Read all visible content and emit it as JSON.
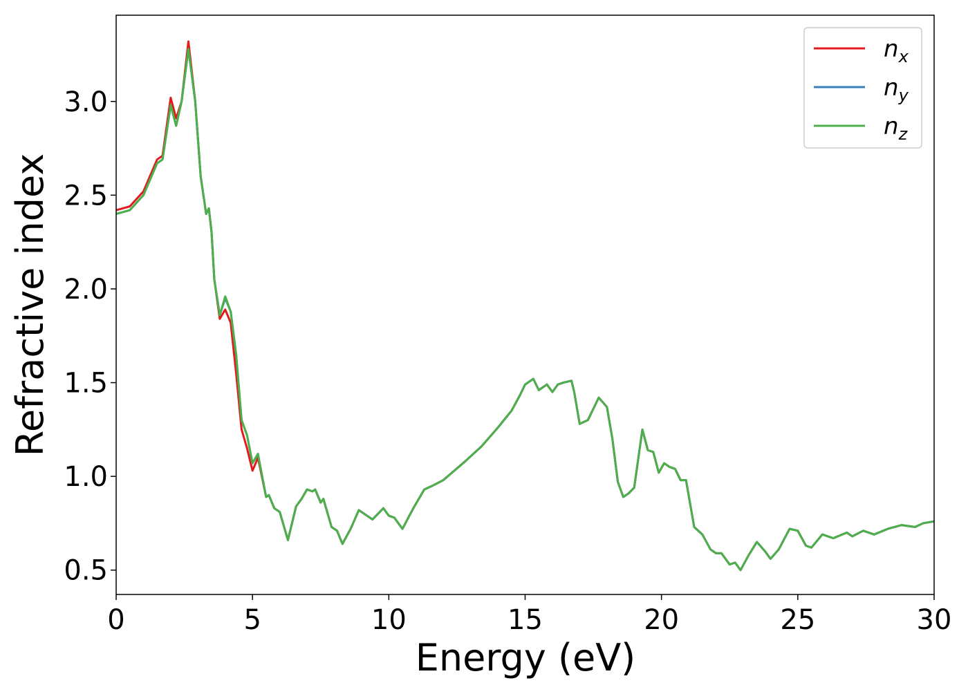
{
  "chart_data": {
    "type": "line",
    "xlabel": "Energy (eV)",
    "ylabel": "Refractive index",
    "xlim": [
      0,
      30
    ],
    "ylim": [
      0.37,
      3.46
    ],
    "xticks": [
      0,
      5,
      10,
      15,
      20,
      25,
      30
    ],
    "yticks": [
      0.5,
      {
        "value": 1.0,
        "label": "1.0"
      },
      1.5,
      {
        "value": 2.0,
        "label": "2.0"
      },
      2.5,
      {
        "value": 3.0,
        "label": "3.0"
      }
    ],
    "legend": "upper right",
    "x": [
      0,
      0.5,
      1.0,
      1.5,
      1.7,
      2.0,
      2.2,
      2.4,
      2.65,
      2.9,
      3.1,
      3.3,
      3.4,
      3.5,
      3.6,
      3.8,
      4.0,
      4.2,
      4.4,
      4.6,
      4.8,
      5.0,
      5.2,
      5.5,
      5.6,
      5.8,
      6.0,
      6.3,
      6.6,
      6.8,
      7.0,
      7.2,
      7.3,
      7.5,
      7.6,
      7.9,
      8.1,
      8.3,
      8.6,
      8.9,
      9.1,
      9.4,
      9.8,
      10.0,
      10.2,
      10.5,
      10.9,
      11.3,
      11.6,
      12.0,
      12.4,
      12.8,
      13.4,
      14.0,
      14.5,
      14.8,
      15.0,
      15.3,
      15.5,
      15.8,
      16.0,
      16.2,
      16.4,
      16.7,
      16.8,
      17.0,
      17.3,
      17.7,
      18.0,
      18.2,
      18.4,
      18.6,
      18.8,
      19.0,
      19.3,
      19.5,
      19.7,
      19.9,
      20.1,
      20.3,
      20.5,
      20.7,
      20.9,
      21.2,
      21.5,
      21.8,
      22.0,
      22.2,
      22.5,
      22.7,
      22.9,
      23.2,
      23.5,
      23.8,
      24.0,
      24.3,
      24.7,
      25.0,
      25.3,
      25.5,
      25.9,
      26.3,
      26.8,
      27.0,
      27.4,
      27.8,
      28.3,
      28.8,
      29.3,
      29.6,
      30
    ],
    "series": [
      {
        "name": "nx",
        "color": "#e41a1c",
        "values": [
          2.42,
          2.44,
          2.52,
          2.69,
          2.71,
          3.02,
          2.91,
          3.0,
          3.32,
          3.0,
          2.6,
          2.4,
          2.43,
          2.3,
          2.05,
          1.84,
          1.89,
          1.82,
          1.55,
          1.25,
          1.15,
          1.03,
          1.1,
          0.89,
          0.9,
          0.83,
          0.81,
          0.66,
          0.84,
          0.88,
          0.93,
          0.92,
          0.93,
          0.86,
          0.88,
          0.73,
          0.71,
          0.64,
          0.72,
          0.82,
          0.8,
          0.77,
          0.83,
          0.79,
          0.78,
          0.72,
          0.83,
          0.93,
          0.95,
          0.98,
          1.03,
          1.08,
          1.16,
          1.26,
          1.35,
          1.43,
          1.49,
          1.52,
          1.46,
          1.49,
          1.45,
          1.49,
          1.5,
          1.51,
          1.45,
          1.28,
          1.3,
          1.42,
          1.37,
          1.2,
          0.97,
          0.89,
          0.91,
          0.94,
          1.25,
          1.14,
          1.13,
          1.02,
          1.07,
          1.05,
          1.04,
          0.98,
          0.98,
          0.73,
          0.69,
          0.61,
          0.59,
          0.59,
          0.53,
          0.54,
          0.5,
          0.58,
          0.65,
          0.6,
          0.56,
          0.61,
          0.72,
          0.71,
          0.63,
          0.62,
          0.69,
          0.67,
          0.7,
          0.68,
          0.71,
          0.69,
          0.72,
          0.74,
          0.73,
          0.75,
          0.76
        ]
      },
      {
        "name": "ny",
        "color": "#377eb8",
        "values": [
          2.4,
          2.42,
          2.5,
          2.67,
          2.69,
          2.98,
          2.87,
          3.0,
          3.28,
          3.0,
          2.6,
          2.4,
          2.43,
          2.3,
          2.05,
          1.86,
          1.95,
          1.88,
          1.65,
          1.3,
          1.22,
          1.07,
          1.12,
          0.89,
          0.9,
          0.83,
          0.81,
          0.66,
          0.84,
          0.88,
          0.93,
          0.92,
          0.93,
          0.86,
          0.88,
          0.73,
          0.71,
          0.64,
          0.72,
          0.82,
          0.8,
          0.77,
          0.83,
          0.79,
          0.78,
          0.72,
          0.83,
          0.93,
          0.95,
          0.98,
          1.03,
          1.08,
          1.16,
          1.26,
          1.35,
          1.43,
          1.49,
          1.52,
          1.46,
          1.49,
          1.45,
          1.49,
          1.5,
          1.51,
          1.45,
          1.28,
          1.3,
          1.42,
          1.37,
          1.2,
          0.97,
          0.89,
          0.91,
          0.94,
          1.25,
          1.14,
          1.13,
          1.02,
          1.07,
          1.05,
          1.04,
          0.98,
          0.98,
          0.73,
          0.69,
          0.61,
          0.59,
          0.59,
          0.53,
          0.54,
          0.5,
          0.58,
          0.65,
          0.6,
          0.56,
          0.61,
          0.72,
          0.71,
          0.63,
          0.62,
          0.69,
          0.67,
          0.7,
          0.68,
          0.71,
          0.69,
          0.72,
          0.74,
          0.73,
          0.75,
          0.76
        ]
      },
      {
        "name": "nz",
        "color": "#4daf4a",
        "values": [
          2.4,
          2.42,
          2.5,
          2.67,
          2.69,
          2.98,
          2.87,
          3.0,
          3.28,
          3.0,
          2.6,
          2.4,
          2.43,
          2.3,
          2.05,
          1.86,
          1.96,
          1.88,
          1.65,
          1.3,
          1.22,
          1.07,
          1.12,
          0.89,
          0.9,
          0.83,
          0.81,
          0.66,
          0.84,
          0.88,
          0.93,
          0.92,
          0.93,
          0.86,
          0.88,
          0.73,
          0.71,
          0.64,
          0.72,
          0.82,
          0.8,
          0.77,
          0.83,
          0.79,
          0.78,
          0.72,
          0.83,
          0.93,
          0.95,
          0.98,
          1.03,
          1.08,
          1.16,
          1.26,
          1.35,
          1.43,
          1.49,
          1.52,
          1.46,
          1.49,
          1.45,
          1.49,
          1.5,
          1.51,
          1.45,
          1.28,
          1.3,
          1.42,
          1.37,
          1.2,
          0.97,
          0.89,
          0.91,
          0.94,
          1.25,
          1.14,
          1.13,
          1.02,
          1.07,
          1.05,
          1.04,
          0.98,
          0.98,
          0.73,
          0.69,
          0.61,
          0.59,
          0.59,
          0.53,
          0.54,
          0.5,
          0.58,
          0.65,
          0.6,
          0.56,
          0.61,
          0.72,
          0.71,
          0.63,
          0.62,
          0.69,
          0.67,
          0.7,
          0.68,
          0.71,
          0.69,
          0.72,
          0.74,
          0.73,
          0.75,
          0.76
        ]
      }
    ]
  }
}
